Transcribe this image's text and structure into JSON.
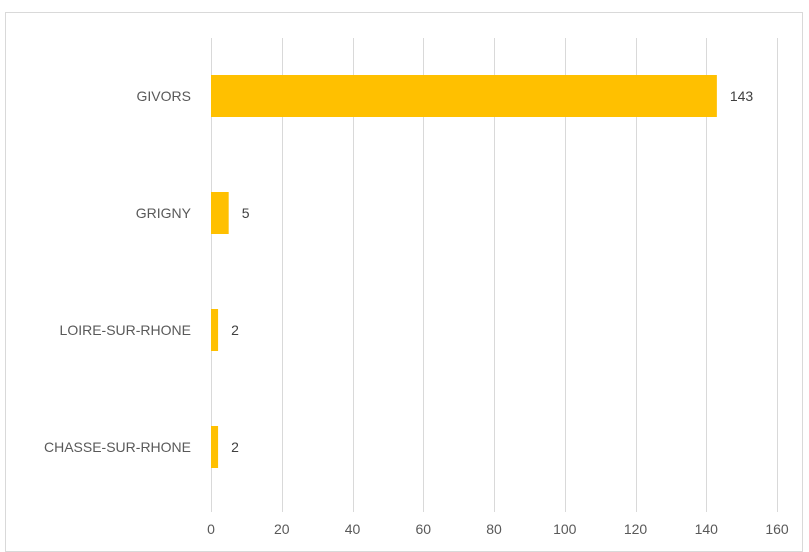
{
  "chart_data": {
    "type": "bar",
    "orientation": "horizontal",
    "categories": [
      "GIVORS",
      "GRIGNY",
      "LOIRE-SUR-RHONE",
      "CHASSE-SUR-RHONE"
    ],
    "values": [
      143,
      5,
      2,
      2
    ],
    "data_labels": [
      "143",
      "5",
      "2",
      "2"
    ],
    "title": "",
    "xlabel": "",
    "ylabel": "",
    "xlim": [
      0,
      160
    ],
    "x_ticks": [
      0,
      20,
      40,
      60,
      80,
      100,
      120,
      140,
      160
    ],
    "x_tick_labels": [
      "0",
      "20",
      "40",
      "60",
      "80",
      "100",
      "120",
      "140",
      "160"
    ],
    "grid": "vertical",
    "legend": "none",
    "bar_color": "#FFC000",
    "grid_color": "#D9D9D9",
    "text_color": "#595959"
  }
}
